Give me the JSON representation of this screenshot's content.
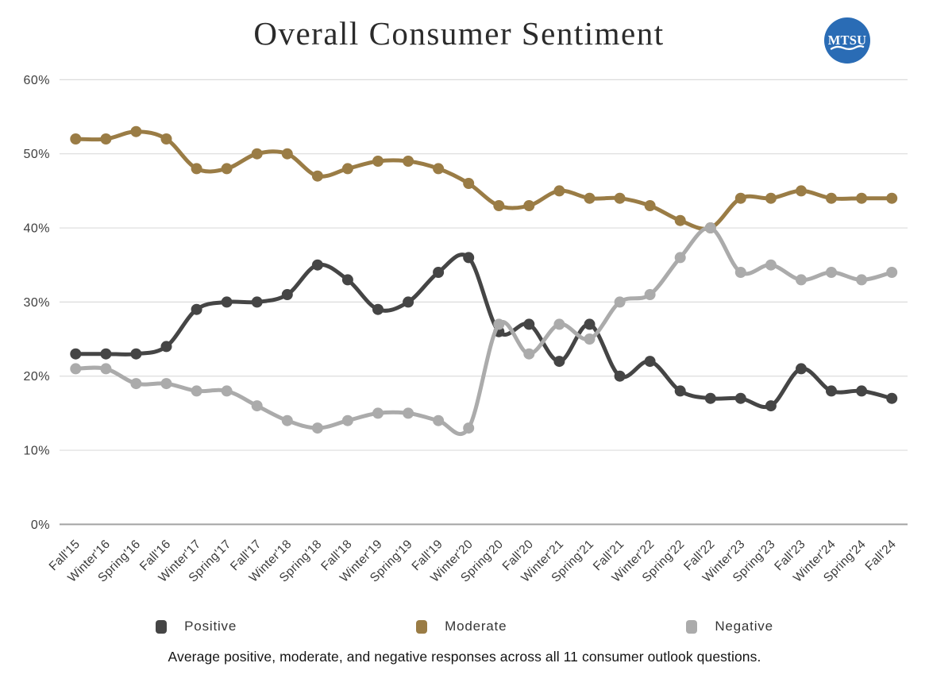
{
  "page": {
    "title": "Overall Consumer Sentiment",
    "caption": "Average positive, moderate, and negative responses across all 11 consumer outlook questions.",
    "logo": {
      "name": "mtsu-logo",
      "text": "MTSU",
      "color": "#2a6cb5"
    }
  },
  "chart_data": {
    "type": "line",
    "title": "Overall Consumer Sentiment",
    "categories": [
      "Fall'15",
      "Winter'16",
      "Spring'16",
      "Fall'16",
      "Winter'17",
      "Spring'17",
      "Fall'17",
      "Winter'18",
      "Spring'18",
      "Fall'18",
      "Winter'19",
      "Spring'19",
      "Fall'19",
      "Winter'20",
      "Spring'20",
      "Fall'20",
      "Winter'21",
      "Spring'21",
      "Fall'21",
      "Winter'22",
      "Spring'22",
      "Fall'22",
      "Winter'23",
      "Spring'23",
      "Fall'23",
      "Winter'24",
      "Spring'24",
      "Fall'24"
    ],
    "series": [
      {
        "name": "Positive",
        "color": "#454545",
        "values": [
          23,
          23,
          23,
          24,
          29,
          30,
          30,
          31,
          35,
          33,
          29,
          30,
          34,
          36,
          26,
          27,
          22,
          27,
          20,
          22,
          18,
          17,
          17,
          16,
          21,
          18,
          18,
          17
        ]
      },
      {
        "name": "Moderate",
        "color": "#9a7c45",
        "values": [
          52,
          52,
          53,
          52,
          48,
          48,
          50,
          50,
          47,
          48,
          49,
          49,
          48,
          46,
          43,
          43,
          45,
          44,
          44,
          43,
          41,
          40,
          44,
          44,
          45,
          44,
          44,
          44
        ]
      },
      {
        "name": "Negative",
        "color": "#ababab",
        "values": [
          21,
          21,
          19,
          19,
          18,
          18,
          16,
          14,
          13,
          14,
          15,
          15,
          14,
          13,
          27,
          23,
          27,
          25,
          30,
          31,
          36,
          40,
          34,
          35,
          33,
          34,
          33,
          34
        ]
      }
    ],
    "ylim": [
      0,
      60
    ],
    "yticks": [
      0,
      10,
      20,
      30,
      40,
      50,
      60
    ],
    "ytick_suffix": "%",
    "xlabel": "",
    "ylabel": "",
    "grid": "horizontal",
    "legend_position": "bottom"
  }
}
